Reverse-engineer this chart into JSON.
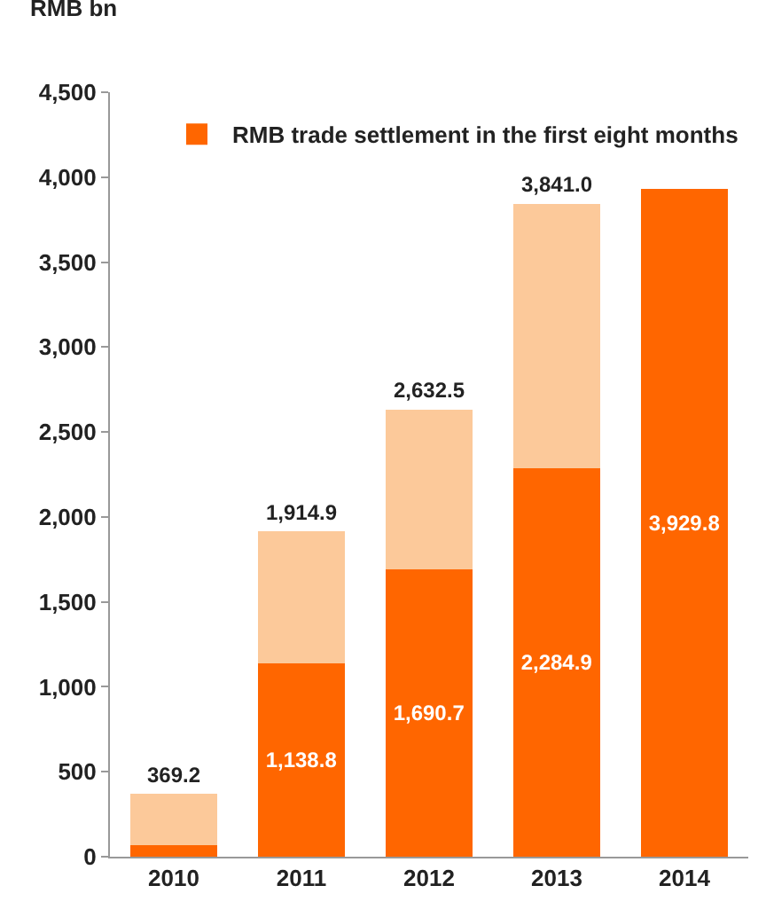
{
  "chart_data": {
    "type": "bar",
    "ylabel": "RMB bn",
    "categories": [
      "2010",
      "2011",
      "2012",
      "2013",
      "2014"
    ],
    "stacked": true,
    "series": [
      {
        "name": "RMB trade settlement in the first eight months",
        "color": "#ff6600",
        "values": [
          70,
          1138.8,
          1690.7,
          2284.9,
          3929.8
        ],
        "value_labels": [
          null,
          "1,138.8",
          "1,690.7",
          "2,284.9",
          "3,929.8"
        ]
      },
      {
        "color": "#fcc99a",
        "values": [
          299.2,
          776.1,
          941.8,
          1556.1,
          null
        ]
      }
    ],
    "totals": [
      "369.2",
      "1,914.9",
      "2,632.5",
      "3,841.0",
      null
    ],
    "ylim": [
      0,
      4500
    ],
    "yticks": [
      0,
      500,
      {
        "value": 1000,
        "label": "1,000"
      },
      {
        "value": 1500,
        "label": "1,500"
      },
      {
        "value": 2000,
        "label": "2,000"
      },
      {
        "value": 2500,
        "label": "2,500"
      },
      {
        "value": 3000,
        "label": "3,000"
      },
      {
        "value": 3500,
        "label": "3,500"
      },
      {
        "value": 4000,
        "label": "4,000"
      },
      {
        "value": 4500,
        "label": "4,500"
      }
    ],
    "grid": false,
    "legend": "top right"
  }
}
